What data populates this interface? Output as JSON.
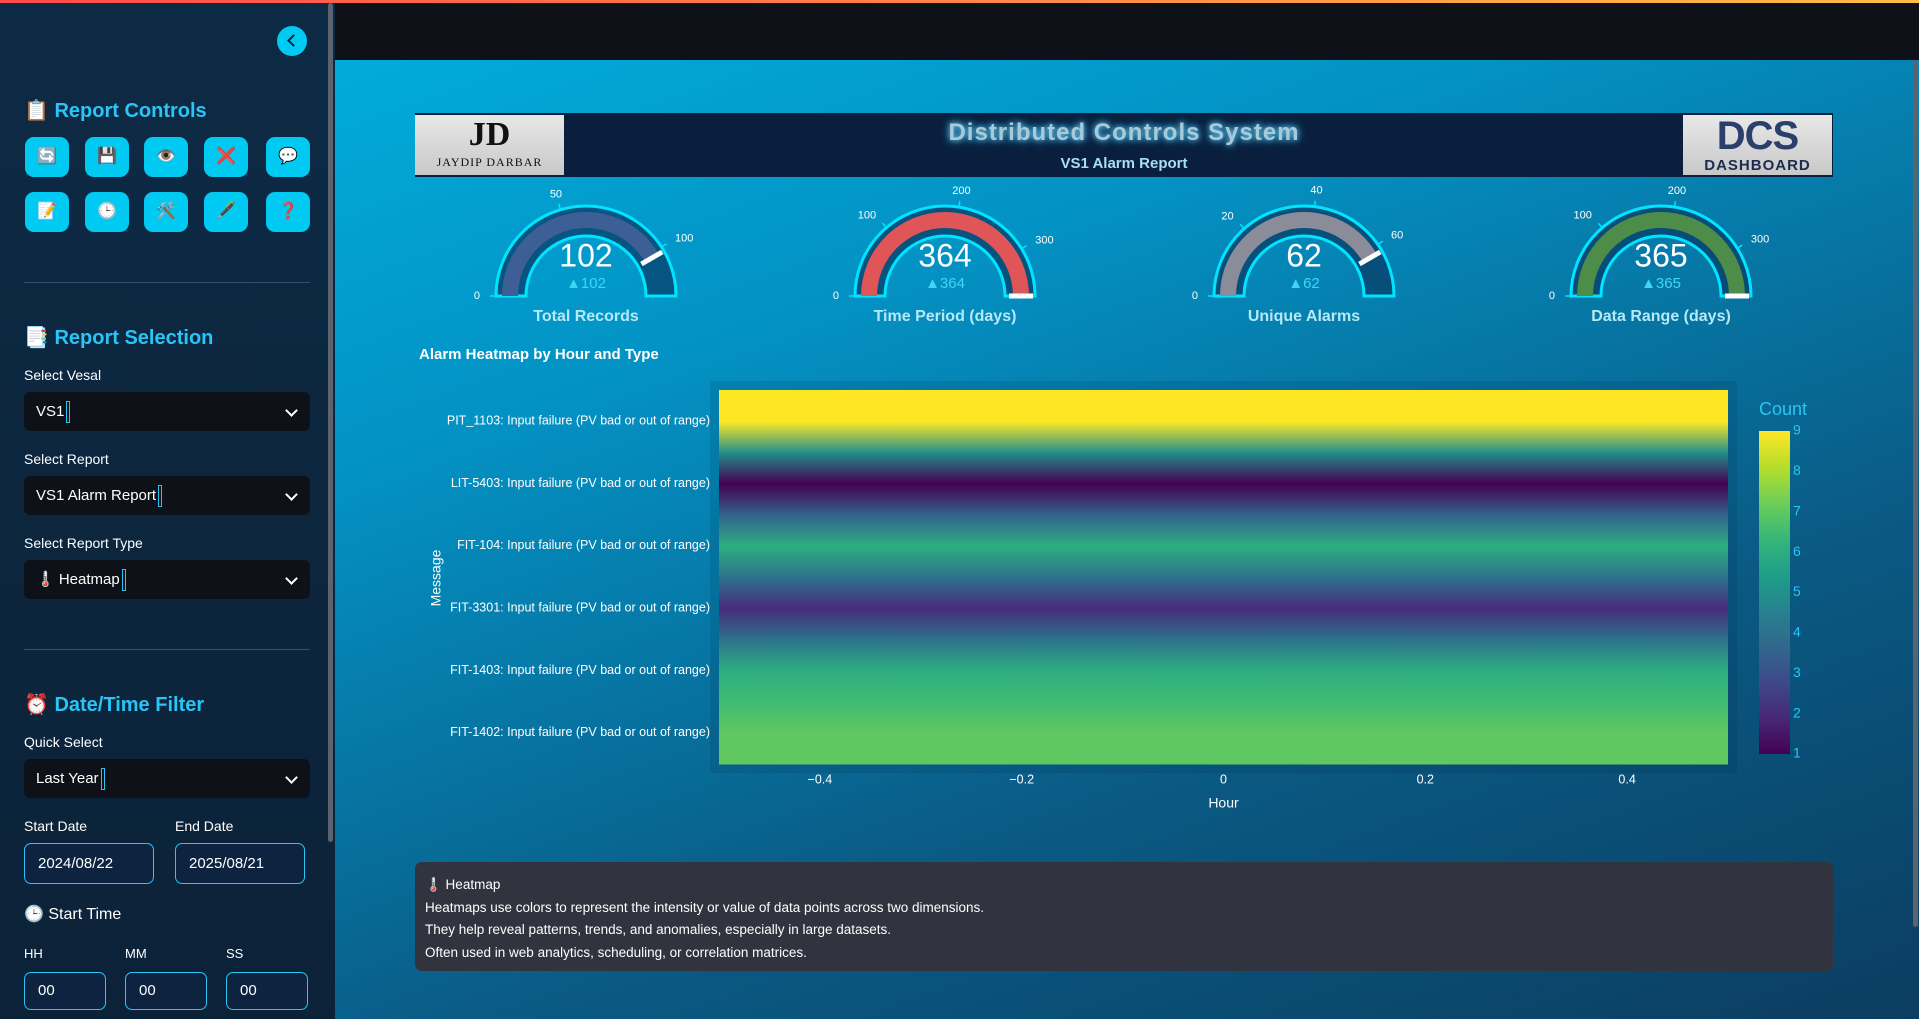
{
  "sidebar": {
    "report_controls": {
      "title": "📋 Report Controls",
      "buttons": [
        "🔄",
        "💾",
        "👁️",
        "❌",
        "💬",
        "📝",
        "🕒",
        "🛠️",
        "🖋️",
        "❓"
      ]
    },
    "report_selection": {
      "title": "📑 Report Selection",
      "fields": [
        {
          "label": "Select Vesal",
          "value": "VS1"
        },
        {
          "label": "Select Report",
          "value": "VS1 Alarm Report"
        },
        {
          "label": "Select Report Type",
          "value": "🌡️ Heatmap"
        }
      ]
    },
    "datetime_filter": {
      "title": "⏰ Date/Time Filter",
      "quick_select": {
        "label": "Quick Select",
        "value": "Last Year"
      },
      "start_date": {
        "label": "Start Date",
        "value": "2024/08/22"
      },
      "end_date": {
        "label": "End Date",
        "value": "2025/08/21"
      },
      "start_time": {
        "title": "🕒 Start Time",
        "fields": [
          {
            "label": "HH",
            "value": "00"
          },
          {
            "label": "MM",
            "value": "00"
          },
          {
            "label": "SS",
            "value": "00"
          }
        ]
      }
    }
  },
  "header": {
    "logo_left": {
      "mark": "JD",
      "name": "JAYDIP DARBAR"
    },
    "title": "Distributed Controls System",
    "subtitle": "VS1 Alarm Report",
    "logo_right": {
      "mark": "DCS",
      "name": "DASHBOARD"
    }
  },
  "gauges": [
    {
      "label": "Total Records",
      "value": 102,
      "delta": {
        "value": 102,
        "label": "▲102"
      },
      "range": [
        0,
        122.4
      ],
      "ticks": [
        0,
        50,
        100
      ],
      "bar_color": "#3e5f96"
    },
    {
      "label": "Time Period (days)",
      "value": 364,
      "delta": {
        "value": 364,
        "label": "▲364"
      },
      "range": [
        0,
        364
      ],
      "ticks": [
        0,
        100,
        200,
        300
      ],
      "bar_color": "#e05558"
    },
    {
      "label": "Unique Alarms",
      "value": 62,
      "delta": {
        "value": 62,
        "label": "▲62"
      },
      "range": [
        0,
        74.4
      ],
      "ticks": [
        0,
        20,
        40,
        60
      ],
      "bar_color": "#8a8d99"
    },
    {
      "label": "Data Range (days)",
      "value": 365,
      "delta": {
        "value": 365,
        "label": "▲365"
      },
      "range": [
        0,
        365
      ],
      "ticks": [
        0,
        100,
        200,
        300
      ],
      "bar_color": "#4e8c4a"
    }
  ],
  "heatmap": {
    "type": "heatmap",
    "title": "Alarm Heatmap by Hour and Type",
    "x_label": "Hour",
    "y_label": "Message",
    "categories": [
      "PIT_1103: Input failure (PV bad or out of range)",
      "LIT-5403: Input failure (PV bad or out of range)",
      "FIT-104: Input failure (PV bad or out of range)",
      "FIT-3301: Input failure (PV bad or out of range)",
      "FIT-1403: Input failure (PV bad or out of range)",
      "FIT-1402: Input failure (PV bad or out of range)"
    ],
    "values": [
      9,
      1,
      6,
      2,
      6,
      7
    ],
    "xlim": [
      -0.5,
      0.5
    ],
    "xticks": [
      {
        "value": -0.4,
        "label": "−0.4"
      },
      {
        "value": -0.2,
        "label": "−0.2"
      },
      0,
      0.2,
      0.4
    ],
    "colorbar": {
      "title": "Count",
      "zlim": [
        1,
        9
      ],
      "ticks": [
        1,
        2,
        3,
        4,
        5,
        6,
        7,
        8,
        9
      ],
      "colorscale": "viridis"
    }
  },
  "info": {
    "title": "🌡️ Heatmap",
    "lines": [
      "Heatmaps use colors to represent the intensity or value of data points across two dimensions.",
      "They help reveal patterns, trends, and anomalies, especially in large datasets.",
      "Often used in web analytics, scheduling, or correlation matrices."
    ]
  }
}
